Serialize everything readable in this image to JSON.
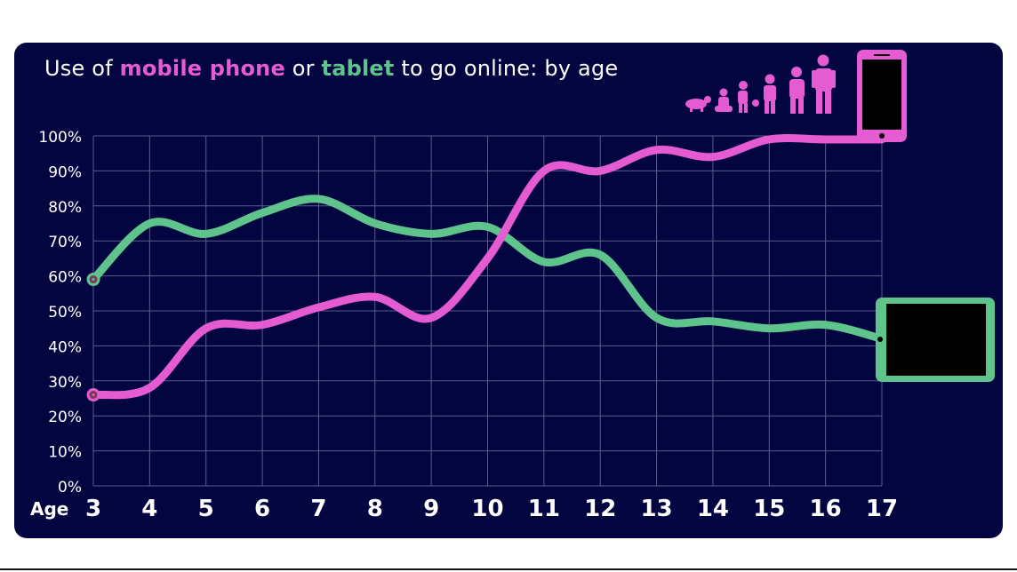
{
  "title": {
    "prefix": "Use of ",
    "mobile": "mobile phone",
    "middle": " or ",
    "tablet": "tablet",
    "suffix": " to go online: by age"
  },
  "colors": {
    "background": "#030540",
    "mobile": "#e55bd2",
    "tablet": "#5fc48c",
    "grid": "#5a5c8a",
    "text": "#ffffff"
  },
  "icons": [
    "growth-silhouettes-icon",
    "mobile-phone-icon",
    "tablet-icon"
  ],
  "chart_data": {
    "type": "line",
    "title": "Use of mobile phone or tablet to go online: by age",
    "xlabel": "Age",
    "ylabel": "",
    "x": [
      3,
      4,
      5,
      6,
      7,
      8,
      9,
      10,
      11,
      12,
      13,
      14,
      15,
      16,
      17
    ],
    "xlim": [
      3,
      17
    ],
    "ylim": [
      0,
      100
    ],
    "yticks": [
      "0%",
      "10%",
      "20%",
      "30%",
      "40%",
      "50%",
      "60%",
      "70%",
      "80%",
      "90%",
      "100%"
    ],
    "grid": true,
    "series": [
      {
        "name": "mobile phone",
        "values": [
          26,
          28,
          45,
          46,
          51,
          54,
          48,
          65,
          90,
          90,
          96,
          94,
          99,
          99,
          99
        ]
      },
      {
        "name": "tablet",
        "values": [
          59,
          75,
          72,
          78,
          82,
          75,
          72,
          74,
          64,
          66,
          48,
          47,
          45,
          46,
          42
        ]
      }
    ]
  }
}
